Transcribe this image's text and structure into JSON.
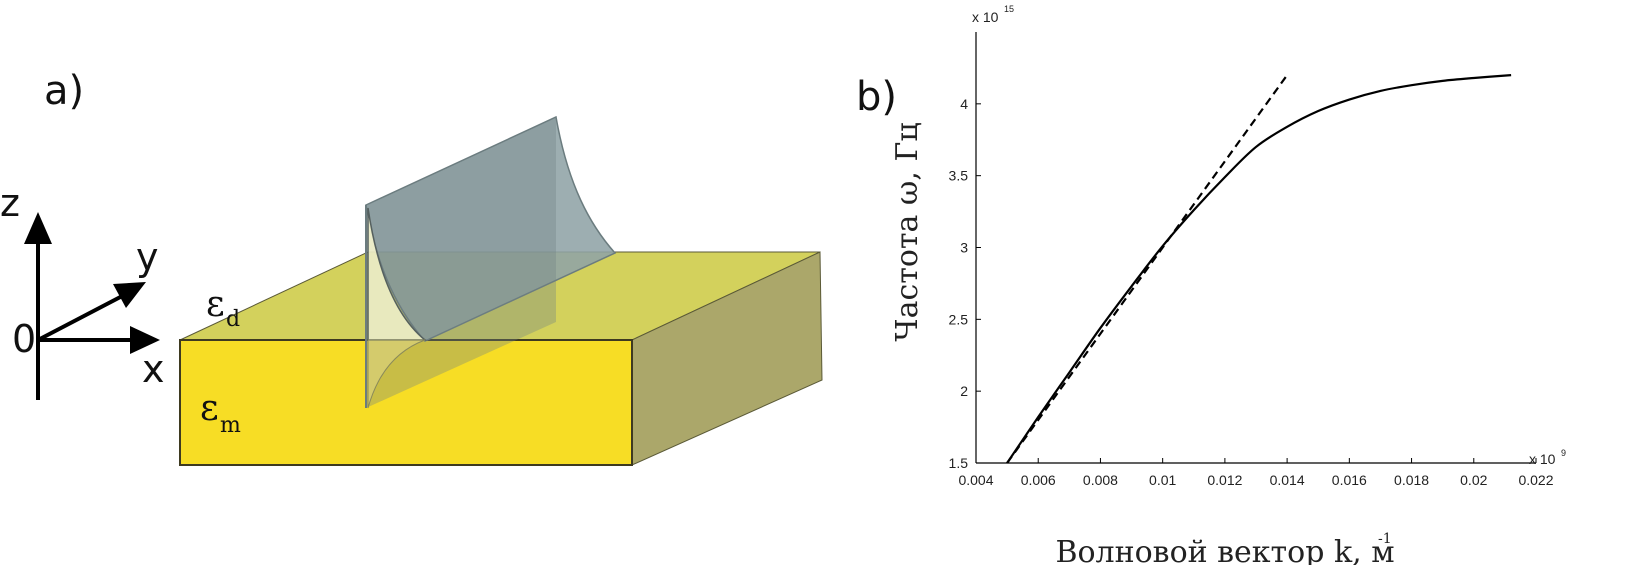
{
  "panel_a": {
    "label": "a)",
    "axes": {
      "z": "z",
      "y": "y",
      "x": "x",
      "origin": "0"
    },
    "eps_dielectric": {
      "symbol": "ε",
      "sub": "d"
    },
    "eps_metal": {
      "symbol": "ε",
      "sub": "m"
    },
    "colors": {
      "metal_front": "#f7dd25",
      "metal_top": "#d3d15c",
      "metal_side": "#aba76a",
      "wave": "#8fa3a6"
    }
  },
  "panel_b": {
    "label": "b)"
  },
  "chart_data": {
    "type": "line",
    "xlabel": "Волновой вектор k, м",
    "xlabel_sup": "-1",
    "ylabel": "Частота ω, Гц",
    "x_multiplier": {
      "base": "x 10",
      "exp": "9"
    },
    "y_multiplier": {
      "base": "x 10",
      "exp": "15"
    },
    "xlim": [
      0.004,
      0.022
    ],
    "ylim": [
      1.5,
      4.5
    ],
    "x_ticks": [
      "0.004",
      "0.006",
      "0.008",
      "0.01",
      "0.012",
      "0.014",
      "0.016",
      "0.018",
      "0.02",
      "0.022"
    ],
    "y_ticks": [
      "1.5",
      "2",
      "2.5",
      "3",
      "3.5",
      "4"
    ],
    "series": [
      {
        "style": "solid",
        "x": [
          0.005,
          0.006,
          0.007,
          0.008,
          0.009,
          0.01,
          0.011,
          0.012,
          0.013,
          0.014,
          0.015,
          0.016,
          0.017,
          0.018,
          0.019,
          0.02,
          0.0212
        ],
        "y": [
          1.5,
          1.82,
          2.13,
          2.44,
          2.73,
          3.01,
          3.26,
          3.49,
          3.7,
          3.84,
          3.95,
          4.03,
          4.09,
          4.13,
          4.16,
          4.18,
          4.2
        ]
      },
      {
        "style": "dashed",
        "x": [
          0.005,
          0.014
        ],
        "y": [
          1.5,
          4.2
        ]
      }
    ]
  }
}
